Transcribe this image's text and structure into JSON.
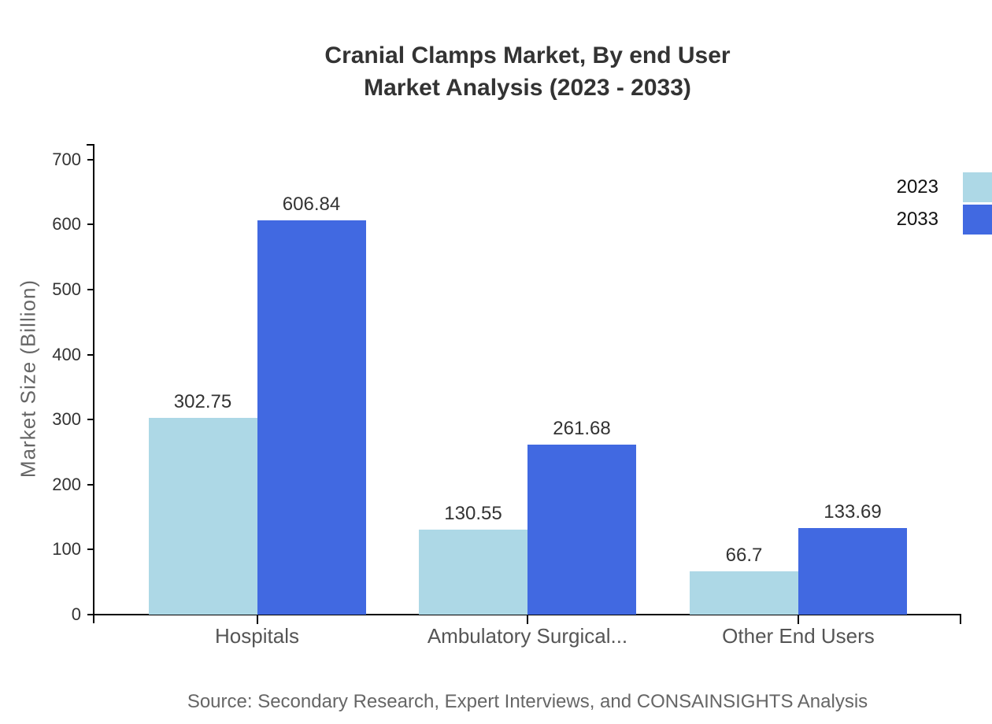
{
  "chart_data": {
    "type": "bar",
    "title_line1": "Cranial Clamps Market, By end User",
    "title_line2": "Market Analysis (2023 - 2033)",
    "ylabel": "Market Size (Billion)",
    "xlabel": "",
    "categories": [
      "Hospitals",
      "Ambulatory Surgical...",
      "Other End Users"
    ],
    "series": [
      {
        "name": "2023",
        "color": "#ADD8E6",
        "values": [
          302.75,
          130.55,
          66.7
        ]
      },
      {
        "name": "2033",
        "color": "#4169E1",
        "values": [
          606.84,
          261.68,
          133.69
        ]
      }
    ],
    "yticks": [
      0,
      100,
      200,
      300,
      400,
      500,
      600,
      700
    ],
    "ylim": [
      0,
      724
    ],
    "grid": false,
    "legend_position": "top-right",
    "source": "Source: Secondary Research, Expert Interviews, and CONSAINSIGHTS Analysis"
  }
}
